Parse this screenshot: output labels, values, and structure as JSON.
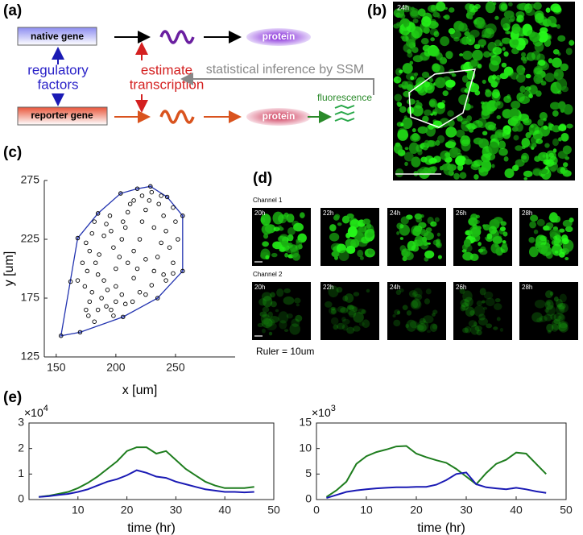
{
  "panel_labels": [
    "(a)",
    "(b)",
    "(c)",
    "(d)",
    "(e)"
  ],
  "diagram": {
    "native_gene": "native gene",
    "reporter_gene": "reporter gene",
    "regulatory_factors": [
      "regulatory",
      "factors"
    ],
    "estimate_transcription": [
      "estimate",
      "transcription"
    ],
    "inference": "statistical inference by SSM",
    "protein_top": "protein",
    "protein_bottom": "protein",
    "fluorescence": "fluorescence"
  },
  "image_b": {
    "timestamp": "24h"
  },
  "image_d": {
    "channels": [
      {
        "name": "Channel 1",
        "times": [
          "20h",
          "22h",
          "24h",
          "26h",
          "28h"
        ]
      },
      {
        "name": "Channel 2",
        "times": [
          "20h",
          "22h",
          "24h",
          "26h",
          "28h"
        ]
      }
    ],
    "ruler": "Ruler = 10um"
  },
  "chart_data": [
    {
      "type": "scatter",
      "x": [
        154,
        170,
        206,
        235,
        256,
        256,
        243,
        229,
        218,
        204,
        185,
        168,
        162,
        175,
        178,
        172,
        176,
        168,
        174,
        180,
        178,
        175,
        177,
        182,
        185,
        183,
        186,
        190,
        192,
        195,
        190,
        193,
        188,
        192,
        196,
        198,
        200,
        203,
        198,
        205,
        208,
        210,
        212,
        200,
        205,
        208,
        214,
        215,
        218,
        215,
        220,
        222,
        225,
        228,
        220,
        225,
        230,
        232,
        235,
        238,
        232,
        240,
        236,
        242,
        245,
        240,
        248,
        248,
        242,
        252,
        250,
        248,
        238,
        230,
        222,
        215,
        206,
        196,
        182,
        180,
        210,
        225,
        185,
        200
      ],
      "y": [
        143,
        146,
        159,
        175,
        198,
        245,
        261,
        270,
        268,
        264,
        247,
        226,
        189,
        222,
        215,
        205,
        198,
        190,
        185,
        180,
        172,
        165,
        160,
        155,
        195,
        205,
        212,
        228,
        238,
        245,
        190,
        182,
        175,
        168,
        165,
        160,
        200,
        210,
        218,
        225,
        235,
        248,
        255,
        185,
        178,
        170,
        172,
        192,
        200,
        215,
        225,
        240,
        250,
        258,
        180,
        178,
        186,
        198,
        210,
        222,
        235,
        245,
        255,
        232,
        218,
        195,
        205,
        196,
        190,
        225,
        240,
        252,
        262,
        265,
        262,
        258,
        240,
        232,
        240,
        230,
        205,
        208,
        165,
        172
      ],
      "xlim": [
        140,
        300
      ],
      "ylim": [
        125,
        275
      ],
      "xticks": [
        150,
        200,
        250
      ],
      "yticks": [
        125,
        175,
        225,
        275
      ],
      "xlabel": "x [um]",
      "ylabel": "y [um]",
      "color": "#000000",
      "hull_color": "#2233b0"
    },
    {
      "type": "line",
      "x": [
        2,
        4,
        6,
        8,
        10,
        12,
        14,
        16,
        18,
        20,
        22,
        24,
        26,
        28,
        30,
        32,
        34,
        36,
        38,
        40,
        42,
        44,
        46
      ],
      "series": [
        {
          "color": "#1e7d1e",
          "values": [
            0.1,
            0.15,
            0.22,
            0.3,
            0.45,
            0.65,
            0.9,
            1.2,
            1.5,
            1.9,
            2.05,
            2.05,
            1.8,
            1.9,
            1.55,
            1.2,
            0.95,
            0.7,
            0.55,
            0.45,
            0.45,
            0.45,
            0.5
          ]
        },
        {
          "color": "#1a1ab4",
          "values": [
            0.1,
            0.13,
            0.18,
            0.22,
            0.3,
            0.4,
            0.55,
            0.7,
            0.8,
            0.95,
            1.15,
            1.05,
            0.9,
            0.85,
            0.7,
            0.6,
            0.5,
            0.4,
            0.35,
            0.3,
            0.3,
            0.28,
            0.3
          ]
        }
      ],
      "xlim": [
        0,
        50
      ],
      "ylim": [
        0,
        3
      ],
      "xticks": [
        10,
        20,
        30,
        40,
        50
      ],
      "yticks": [
        0,
        1,
        2,
        3
      ],
      "xlabel": "time  (hr)",
      "y_multiplier": "×10",
      "y_exponent": "4"
    },
    {
      "type": "line",
      "x": [
        2,
        4,
        6,
        8,
        10,
        12,
        14,
        16,
        18,
        20,
        22,
        24,
        26,
        28,
        30,
        32,
        34,
        36,
        38,
        40,
        42,
        44,
        46
      ],
      "series": [
        {
          "color": "#1e7d1e",
          "values": [
            0.5,
            1.8,
            3.5,
            7,
            8.5,
            9.3,
            9.8,
            10.4,
            10.5,
            9,
            8.3,
            7.7,
            7.2,
            6,
            4.5,
            3,
            5.2,
            7,
            7.8,
            9.2,
            9,
            7,
            5
          ]
        },
        {
          "color": "#1a1ab4",
          "values": [
            0.3,
            0.9,
            1.5,
            1.8,
            2,
            2.2,
            2.3,
            2.4,
            2.4,
            2.5,
            2.5,
            2.9,
            3.8,
            5,
            5.3,
            3,
            2.4,
            2.2,
            2,
            2.3,
            2,
            1.6,
            1.3
          ]
        }
      ],
      "xlim": [
        0,
        50
      ],
      "ylim": [
        0,
        15
      ],
      "xticks": [
        0,
        10,
        20,
        30,
        40,
        50
      ],
      "yticks": [
        0,
        5,
        10,
        15
      ],
      "xlabel": "time  (hr)",
      "y_multiplier": "×10",
      "y_exponent": "3"
    }
  ]
}
